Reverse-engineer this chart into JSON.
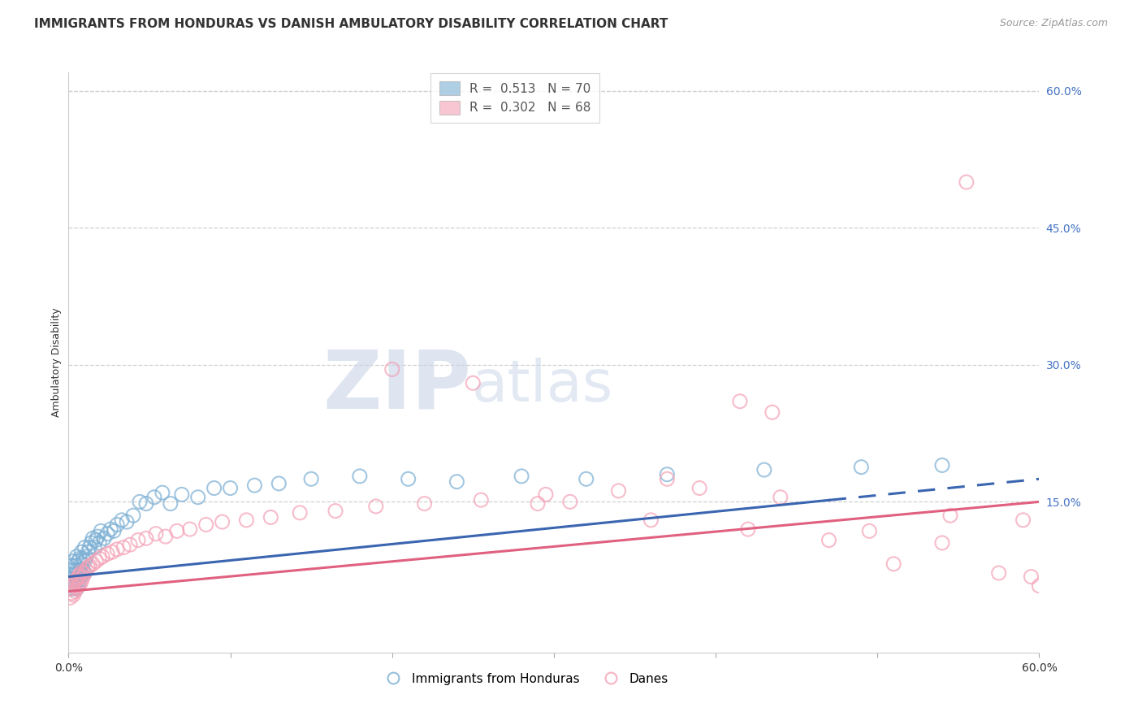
{
  "title": "IMMIGRANTS FROM HONDURAS VS DANISH AMBULATORY DISABILITY CORRELATION CHART",
  "source": "Source: ZipAtlas.com",
  "ylabel": "Ambulatory Disability",
  "x_min": 0.0,
  "x_max": 0.6,
  "y_min": -0.015,
  "y_max": 0.62,
  "y_ticks_right": [
    0.15,
    0.3,
    0.45,
    0.6
  ],
  "y_tick_labels_right": [
    "15.0%",
    "30.0%",
    "45.0%",
    "60.0%"
  ],
  "grid_color": "#d0d0d0",
  "background_color": "#ffffff",
  "blue_color": "#7bafd4",
  "blue_line_color": "#3a65b0",
  "pink_color": "#f4a0b5",
  "pink_line_color": "#e06080",
  "blue_R": "0.513",
  "blue_N": "70",
  "pink_R": "0.302",
  "pink_N": "68",
  "watermark_zip": "ZIP",
  "watermark_atlas": "atlas",
  "legend_label_blue": "Immigrants from Honduras",
  "legend_label_pink": "Danes",
  "tick_color": "#4472c4",
  "blue_line_solid_end": 0.47,
  "blue_x": [
    0.001,
    0.001,
    0.001,
    0.002,
    0.002,
    0.002,
    0.003,
    0.003,
    0.003,
    0.003,
    0.004,
    0.004,
    0.004,
    0.005,
    0.005,
    0.005,
    0.005,
    0.006,
    0.006,
    0.006,
    0.007,
    0.007,
    0.007,
    0.008,
    0.008,
    0.008,
    0.009,
    0.009,
    0.01,
    0.01,
    0.01,
    0.011,
    0.012,
    0.013,
    0.014,
    0.015,
    0.016,
    0.017,
    0.018,
    0.019,
    0.02,
    0.022,
    0.024,
    0.026,
    0.028,
    0.03,
    0.033,
    0.036,
    0.04,
    0.044,
    0.048,
    0.053,
    0.058,
    0.063,
    0.07,
    0.08,
    0.09,
    0.1,
    0.115,
    0.13,
    0.15,
    0.18,
    0.21,
    0.24,
    0.28,
    0.32,
    0.37,
    0.43,
    0.49,
    0.54
  ],
  "blue_y": [
    0.055,
    0.065,
    0.075,
    0.06,
    0.07,
    0.08,
    0.055,
    0.065,
    0.075,
    0.085,
    0.06,
    0.07,
    0.08,
    0.055,
    0.065,
    0.075,
    0.09,
    0.06,
    0.072,
    0.085,
    0.065,
    0.075,
    0.088,
    0.07,
    0.082,
    0.095,
    0.075,
    0.088,
    0.072,
    0.085,
    0.1,
    0.09,
    0.095,
    0.1,
    0.105,
    0.11,
    0.1,
    0.108,
    0.112,
    0.105,
    0.118,
    0.11,
    0.115,
    0.12,
    0.118,
    0.125,
    0.13,
    0.128,
    0.135,
    0.15,
    0.148,
    0.155,
    0.16,
    0.148,
    0.158,
    0.155,
    0.165,
    0.165,
    0.168,
    0.17,
    0.175,
    0.178,
    0.175,
    0.172,
    0.178,
    0.175,
    0.18,
    0.185,
    0.188,
    0.19
  ],
  "pink_x": [
    0.001,
    0.001,
    0.002,
    0.002,
    0.003,
    0.003,
    0.004,
    0.004,
    0.005,
    0.005,
    0.006,
    0.006,
    0.007,
    0.007,
    0.008,
    0.008,
    0.009,
    0.01,
    0.011,
    0.012,
    0.013,
    0.015,
    0.017,
    0.019,
    0.021,
    0.024,
    0.027,
    0.03,
    0.034,
    0.038,
    0.043,
    0.048,
    0.054,
    0.06,
    0.067,
    0.075,
    0.085,
    0.095,
    0.11,
    0.125,
    0.143,
    0.165,
    0.19,
    0.22,
    0.255,
    0.295,
    0.34,
    0.39,
    0.44,
    0.495,
    0.545,
    0.54,
    0.29,
    0.36,
    0.42,
    0.47,
    0.51,
    0.555,
    0.575,
    0.59,
    0.595,
    0.6,
    0.415,
    0.435,
    0.37,
    0.31,
    0.25,
    0.2
  ],
  "pink_y": [
    0.045,
    0.055,
    0.05,
    0.06,
    0.048,
    0.058,
    0.052,
    0.063,
    0.055,
    0.065,
    0.058,
    0.068,
    0.06,
    0.07,
    0.063,
    0.073,
    0.068,
    0.072,
    0.075,
    0.078,
    0.08,
    0.082,
    0.085,
    0.088,
    0.09,
    0.093,
    0.095,
    0.098,
    0.1,
    0.103,
    0.108,
    0.11,
    0.115,
    0.112,
    0.118,
    0.12,
    0.125,
    0.128,
    0.13,
    0.133,
    0.138,
    0.14,
    0.145,
    0.148,
    0.152,
    0.158,
    0.162,
    0.165,
    0.155,
    0.118,
    0.135,
    0.105,
    0.148,
    0.13,
    0.12,
    0.108,
    0.082,
    0.5,
    0.072,
    0.13,
    0.068,
    0.058,
    0.26,
    0.248,
    0.175,
    0.15,
    0.28,
    0.295
  ]
}
